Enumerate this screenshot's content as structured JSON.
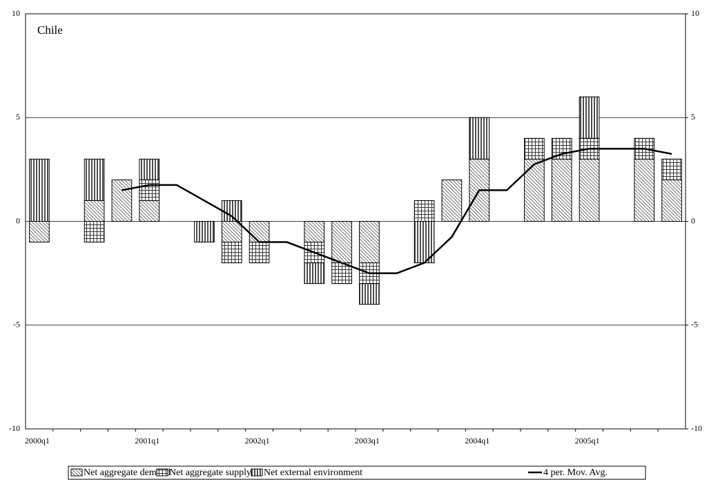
{
  "chart_data": {
    "type": "stacked_bar_line",
    "annotation": "Chile",
    "categories": [
      "2000q1",
      null,
      null,
      null,
      "2001q1",
      null,
      null,
      null,
      "2002q1",
      null,
      null,
      null,
      "2003q1",
      null,
      null,
      null,
      "2004q1",
      null,
      null,
      null,
      "2005q1",
      null,
      null,
      null
    ],
    "series": [
      {
        "name": "Net aggregate demand",
        "color": "#000000",
        "pattern": "diagonal",
        "values": [
          -1,
          0,
          1,
          2,
          1,
          0,
          0,
          -1,
          -1,
          0,
          -1,
          -2,
          -2,
          0,
          0,
          2,
          3,
          0,
          3,
          3,
          3,
          0,
          3,
          2
        ]
      },
      {
        "name": "Net aggregate supply",
        "color": "#000000",
        "pattern": "grid",
        "values": [
          0,
          0,
          -1,
          0,
          1,
          0,
          0,
          -1,
          -1,
          0,
          -1,
          -1,
          -1,
          0,
          1,
          0,
          0,
          0,
          1,
          1,
          1,
          0,
          1,
          1
        ]
      },
      {
        "name": "Net external environment",
        "color": "#000000",
        "pattern": "vertical",
        "values": [
          3,
          0,
          2,
          0,
          1,
          0,
          -1,
          1,
          0,
          0,
          -1,
          0,
          -1,
          0,
          -2,
          0,
          2,
          0,
          0,
          0,
          2,
          0,
          0,
          0
        ]
      },
      {
        "name": "4 per. Mov. Avg.",
        "color": "#000000",
        "kind": "line",
        "values": [
          null,
          null,
          null,
          1.5,
          1.75,
          1.75,
          1.0,
          0.25,
          -1,
          -1,
          -1.5,
          -2,
          -2.5,
          -2.5,
          -2,
          -0.75,
          1.5,
          1.5,
          2.75,
          3.25,
          3.5,
          3.5,
          3.5,
          3.25
        ]
      }
    ],
    "ylim": [
      -10,
      10
    ],
    "yticks": [
      -10,
      -5,
      0,
      5,
      10
    ],
    "y2lim": [
      -10,
      10
    ],
    "y2ticks": [
      -10,
      -5,
      0,
      5,
      10
    ],
    "grid": true,
    "legend": "bottom"
  }
}
